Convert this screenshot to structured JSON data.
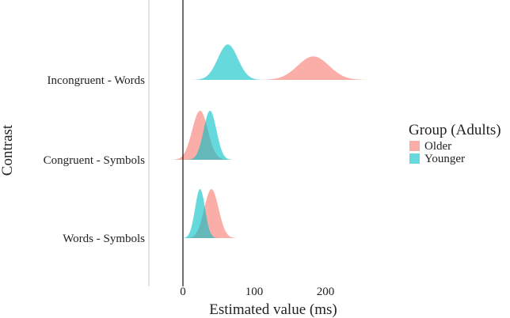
{
  "chart_data": {
    "type": "ridgeline",
    "xlabel": "Estimated value (ms)",
    "ylabel": "Contrast",
    "xticks": [
      0,
      100,
      200
    ],
    "xlim": [
      -45,
      270
    ],
    "categories": [
      "Words - Symbols",
      "Congruent - Symbols",
      "Incongruent - Words"
    ],
    "legend": {
      "title": "Group (Adults)",
      "position": "right"
    },
    "reference_line_x": 0,
    "grid": false,
    "series": [
      {
        "name": "Older",
        "color": "#F8766D",
        "densities": [
          {
            "category": "Words - Symbols",
            "mean": 40,
            "sd": 10,
            "min": 8,
            "max": 75
          },
          {
            "category": "Congruent - Symbols",
            "mean": 24,
            "sd": 11,
            "min": -20,
            "max": 62
          },
          {
            "category": "Incongruent - Words",
            "mean": 183,
            "sd": 22,
            "min": 110,
            "max": 262
          }
        ]
      },
      {
        "name": "Younger",
        "color": "#00BFC4",
        "densities": [
          {
            "category": "Words - Symbols",
            "mean": 24,
            "sd": 7,
            "min": 0,
            "max": 48
          },
          {
            "category": "Congruent - Symbols",
            "mean": 38,
            "sd": 9,
            "min": 5,
            "max": 72
          },
          {
            "category": "Incongruent - Words",
            "mean": 63,
            "sd": 14,
            "min": 8,
            "max": 118
          }
        ]
      }
    ]
  }
}
